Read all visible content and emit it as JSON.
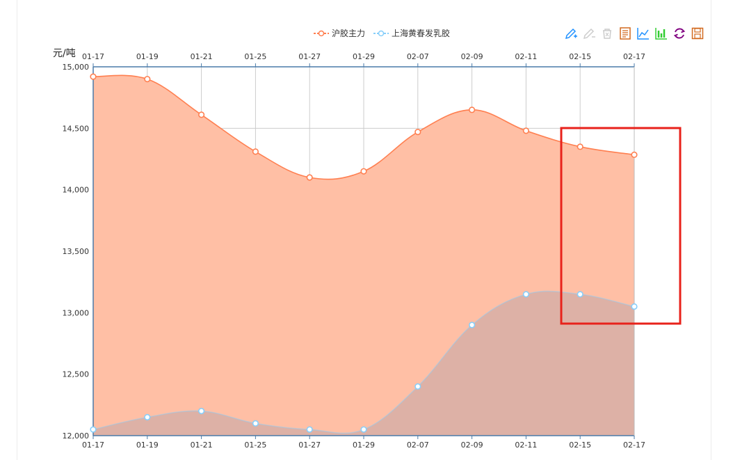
{
  "legend": [
    {
      "name": "沪胶主力",
      "color": "#ff7f50"
    },
    {
      "name": "上海黄春发乳胶",
      "color": "#87cefa"
    }
  ],
  "toolbox": [
    "pencil-icon",
    "eraser-icon",
    "trash-icon",
    "data-view-icon",
    "line-chart-icon",
    "bar-chart-icon",
    "refresh-icon",
    "save-icon"
  ],
  "chart_data": {
    "type": "area",
    "ylabel": "元/吨",
    "categories": [
      "01-17",
      "01-19",
      "01-21",
      "01-25",
      "01-27",
      "01-29",
      "02-07",
      "02-09",
      "02-11",
      "02-15",
      "02-17"
    ],
    "ylim": [
      12000,
      15000
    ],
    "yticks": [
      "12,000",
      "12,500",
      "13,000",
      "13,500",
      "14,000",
      "14,500",
      "15,000"
    ],
    "series": [
      {
        "name": "沪胶主力",
        "color": "#ff7f50",
        "fill": "#ffbfa5",
        "values": [
          14920,
          14900,
          14610,
          14310,
          14100,
          14150,
          14470,
          14650,
          14480,
          14350,
          14285
        ]
      },
      {
        "name": "上海黄春发乳胶",
        "color": "#87cefa",
        "fill": "#ddb1a6",
        "values": [
          12050,
          12150,
          12200,
          12100,
          12050,
          12050,
          12400,
          12900,
          13150,
          13150,
          13050
        ]
      }
    ],
    "grid": true
  }
}
